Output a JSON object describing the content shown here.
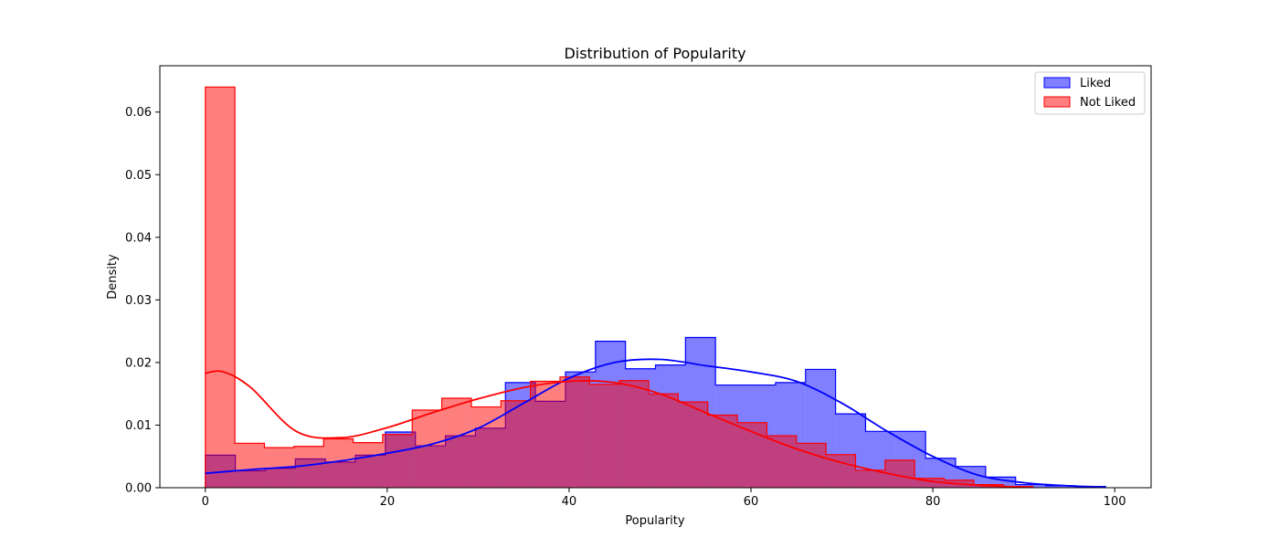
{
  "chart_data": {
    "type": "histogram",
    "title": "Distribution of Popularity",
    "xlabel": "Popularity",
    "ylabel": "Density",
    "xlim": [
      -5,
      104
    ],
    "ylim": [
      0,
      0.0674
    ],
    "xticks": [
      0,
      20,
      40,
      60,
      80,
      100
    ],
    "yticks": [
      0.0,
      0.01,
      0.02,
      0.03,
      0.04,
      0.05,
      0.06
    ],
    "ytick_labels": [
      "0.00",
      "0.01",
      "0.02",
      "0.03",
      "0.04",
      "0.05",
      "0.06"
    ],
    "legend_position": "top-right",
    "series": [
      {
        "name": "Liked",
        "color": "#0000ff",
        "bin_edges": [
          0,
          3.3,
          6.6,
          9.9,
          13.2,
          16.5,
          19.8,
          23.1,
          26.4,
          29.7,
          33.0,
          36.3,
          39.6,
          42.9,
          46.2,
          49.5,
          52.8,
          56.1,
          59.4,
          62.7,
          66.0,
          69.3,
          72.6,
          75.9,
          79.2,
          82.5,
          85.8,
          89.1,
          92.4,
          95.7,
          99.0
        ],
        "densities": [
          0.0052,
          0.0027,
          0.0031,
          0.0046,
          0.0041,
          0.0052,
          0.0089,
          0.0067,
          0.0083,
          0.0095,
          0.0168,
          0.0138,
          0.0185,
          0.0234,
          0.019,
          0.0196,
          0.024,
          0.0164,
          0.0164,
          0.0168,
          0.0189,
          0.0118,
          0.009,
          0.009,
          0.0047,
          0.0034,
          0.0017,
          0.0005,
          0.0003,
          0.0002
        ],
        "kde_x": [
          0,
          5,
          10,
          15,
          20,
          25,
          30,
          35,
          40,
          45,
          50,
          55,
          60,
          65,
          70,
          75,
          80,
          85,
          90,
          95,
          99
        ],
        "kde_y": [
          0.0023,
          0.0029,
          0.0034,
          0.0043,
          0.0055,
          0.007,
          0.0095,
          0.0135,
          0.0175,
          0.02,
          0.0205,
          0.0195,
          0.0185,
          0.017,
          0.0135,
          0.009,
          0.005,
          0.002,
          0.0008,
          0.0003,
          0.0001
        ]
      },
      {
        "name": "Not Liked",
        "color": "#ff0000",
        "bin_edges": [
          0,
          3.25,
          6.5,
          9.75,
          13.0,
          16.25,
          19.5,
          22.75,
          26.0,
          29.25,
          32.5,
          35.75,
          39.0,
          42.25,
          45.5,
          48.75,
          52.0,
          55.25,
          58.5,
          61.75,
          65.0,
          68.25,
          71.5,
          74.75,
          78.0,
          81.25,
          84.5,
          87.75,
          91.0
        ],
        "densities": [
          0.064,
          0.0071,
          0.0064,
          0.0066,
          0.0078,
          0.0072,
          0.0085,
          0.0124,
          0.0143,
          0.0129,
          0.0139,
          0.017,
          0.0177,
          0.0165,
          0.0171,
          0.015,
          0.0137,
          0.0116,
          0.0104,
          0.0083,
          0.0071,
          0.0053,
          0.0028,
          0.0044,
          0.0015,
          0.0012,
          0.0005,
          0.0002
        ],
        "kde_x": [
          0,
          2,
          5,
          10,
          15,
          20,
          25,
          30,
          35,
          40,
          45,
          50,
          55,
          60,
          65,
          70,
          75,
          80,
          85,
          90
        ],
        "kde_y": [
          0.0183,
          0.0185,
          0.016,
          0.009,
          0.008,
          0.0096,
          0.012,
          0.0142,
          0.016,
          0.017,
          0.0168,
          0.015,
          0.012,
          0.009,
          0.0062,
          0.004,
          0.0023,
          0.001,
          0.0004,
          0.0001
        ]
      }
    ]
  }
}
